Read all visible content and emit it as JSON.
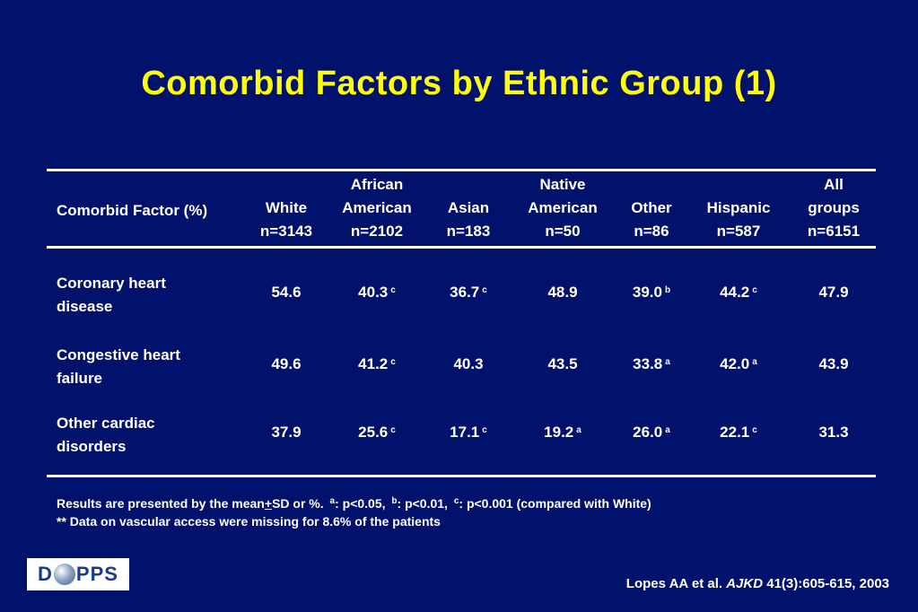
{
  "slide": {
    "title": "Comorbid Factors by Ethnic Group (1)"
  },
  "table": {
    "label_header": "Comorbid Factor (%)",
    "columns": [
      {
        "lines": [
          "White",
          "n=3143"
        ]
      },
      {
        "lines": [
          "African",
          "American",
          "n=2102"
        ]
      },
      {
        "lines": [
          "Asian",
          "n=183"
        ]
      },
      {
        "lines": [
          "Native",
          "American",
          "n=50"
        ]
      },
      {
        "lines": [
          "Other",
          "n=86"
        ]
      },
      {
        "lines": [
          "Hispanic",
          "n=587"
        ]
      },
      {
        "lines": [
          "All",
          "groups",
          "n=6151"
        ]
      }
    ],
    "rows": [
      {
        "label": [
          "Coronary heart",
          "disease"
        ],
        "cells": [
          {
            "v": "54.6",
            "s": ""
          },
          {
            "v": "40.3",
            "s": "c"
          },
          {
            "v": "36.7",
            "s": "c"
          },
          {
            "v": "48.9",
            "s": ""
          },
          {
            "v": "39.0",
            "s": "b"
          },
          {
            "v": "44.2",
            "s": "c"
          },
          {
            "v": "47.9",
            "s": ""
          }
        ]
      },
      {
        "label": [
          "Congestive heart",
          "failure"
        ],
        "cells": [
          {
            "v": "49.6",
            "s": ""
          },
          {
            "v": "41.2",
            "s": "c"
          },
          {
            "v": "40.3",
            "s": ""
          },
          {
            "v": "43.5",
            "s": ""
          },
          {
            "v": "33.8",
            "s": "a"
          },
          {
            "v": "42.0",
            "s": "a"
          },
          {
            "v": "43.9",
            "s": ""
          }
        ]
      },
      {
        "label": [
          "Other cardiac",
          "disorders"
        ],
        "cells": [
          {
            "v": "37.9",
            "s": ""
          },
          {
            "v": "25.6",
            "s": "c"
          },
          {
            "v": "17.1",
            "s": "c"
          },
          {
            "v": "19.2",
            "s": "a"
          },
          {
            "v": "26.0",
            "s": "a"
          },
          {
            "v": "22.1",
            "s": "c"
          },
          {
            "v": "31.3",
            "s": ""
          }
        ]
      }
    ]
  },
  "footnotes": {
    "line1_a": "Results are presented by the mean",
    "line1_pm": "+",
    "line1_b": "SD or %.",
    "sup_a": "a",
    "text_a": ": p<0.05,",
    "sup_b": "b",
    "text_b": ": p<0.01,",
    "sup_c": "c",
    "text_c": ": p<0.001 (compared with White)",
    "line2": "** Data on vascular access were missing for 8.6% of the patients"
  },
  "citation": {
    "authors": "Lopes AA et al.",
    "journal": "AJKD",
    "ref": "41(3):605-615, 2003"
  },
  "logo": {
    "left": "D",
    "right": "PPS"
  },
  "colors": {
    "background": "#00126b",
    "title": "#ffff00",
    "text": "#ffffff"
  }
}
